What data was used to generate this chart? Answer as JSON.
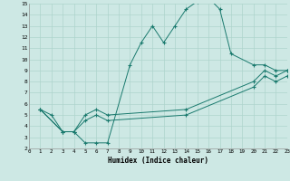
{
  "xlabel": "Humidex (Indice chaleur)",
  "bg_color": "#cde8e4",
  "line_color": "#1a7a6e",
  "grid_color": "#aed4cc",
  "xmin": 0,
  "xmax": 23,
  "ymin": 2,
  "ymax": 15,
  "curve1_x": [
    1,
    2,
    3,
    4,
    5,
    6,
    7,
    9,
    10,
    11,
    12,
    13,
    14,
    15,
    16,
    17,
    18,
    20,
    21,
    22,
    23
  ],
  "curve1_y": [
    5.5,
    5.0,
    3.5,
    3.5,
    2.5,
    2.5,
    2.5,
    9.5,
    11.5,
    13.0,
    11.5,
    13.0,
    14.5,
    15.2,
    15.5,
    14.5,
    10.5,
    9.5,
    9.5,
    9.0,
    9.0
  ],
  "curve2_x": [
    1,
    3,
    4,
    5,
    6,
    7,
    14,
    20,
    21,
    22,
    23
  ],
  "curve2_y": [
    5.5,
    3.5,
    3.5,
    5.0,
    5.5,
    5.0,
    5.5,
    8.0,
    9.0,
    8.5,
    9.0
  ],
  "curve3_x": [
    1,
    3,
    4,
    5,
    6,
    7,
    14,
    20,
    21,
    22,
    23
  ],
  "curve3_y": [
    5.5,
    3.5,
    3.5,
    4.5,
    5.0,
    4.5,
    5.0,
    7.5,
    8.5,
    8.0,
    8.5
  ]
}
